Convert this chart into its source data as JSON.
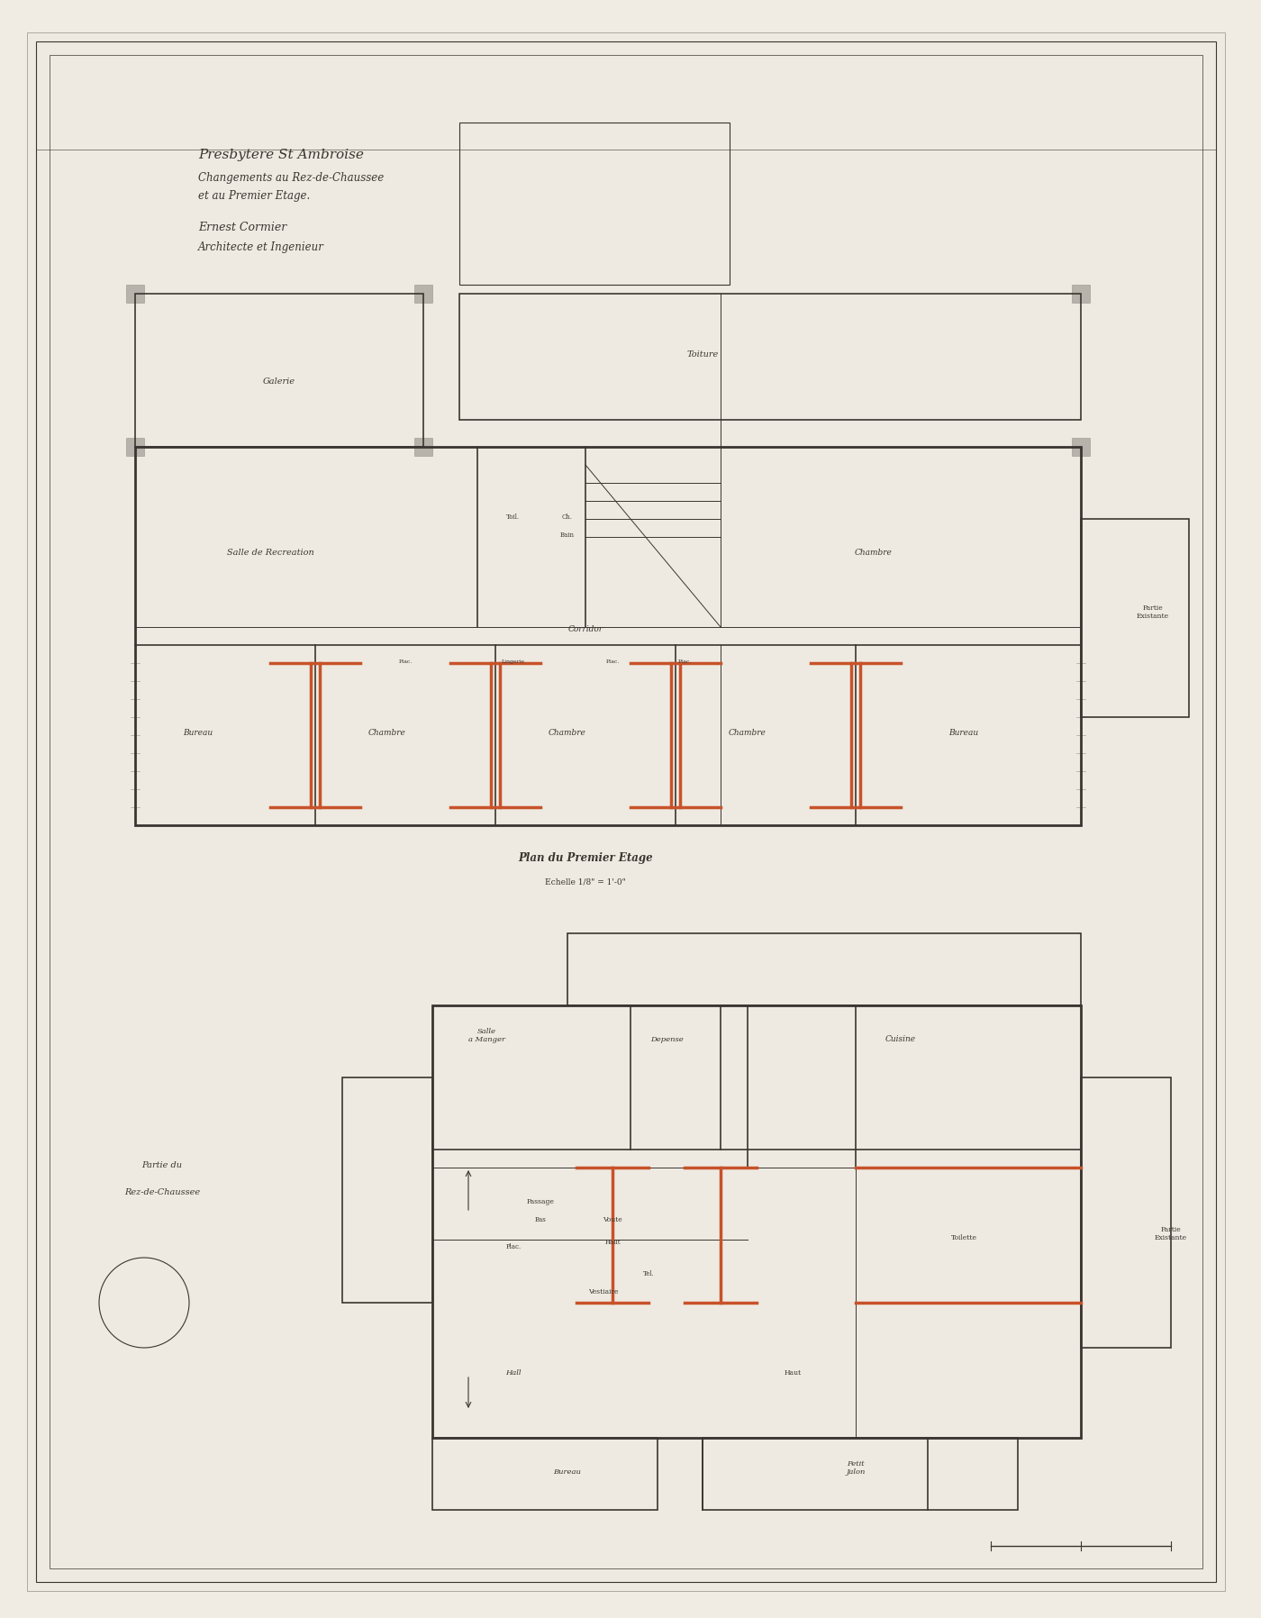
{
  "bg_color": "#f0ece4",
  "paper_color": "#ede9e0",
  "line_color": "#3a3530",
  "orange_color": "#c8522a",
  "title_lines": [
    "Presbytere St Ambroise",
    "Changements au Rez-de-Chaussee",
    "et au Premier Etage.",
    "",
    "Ernest Cormier",
    "Architecte et Ingenieur"
  ],
  "plan1_label": "Plan du Premier Etage",
  "plan1_sublabel": "Echelle 1/8\" = 1'-0\"",
  "plan2_label": "Partie du",
  "plan2_label2": "Rez-de-Chaussee"
}
